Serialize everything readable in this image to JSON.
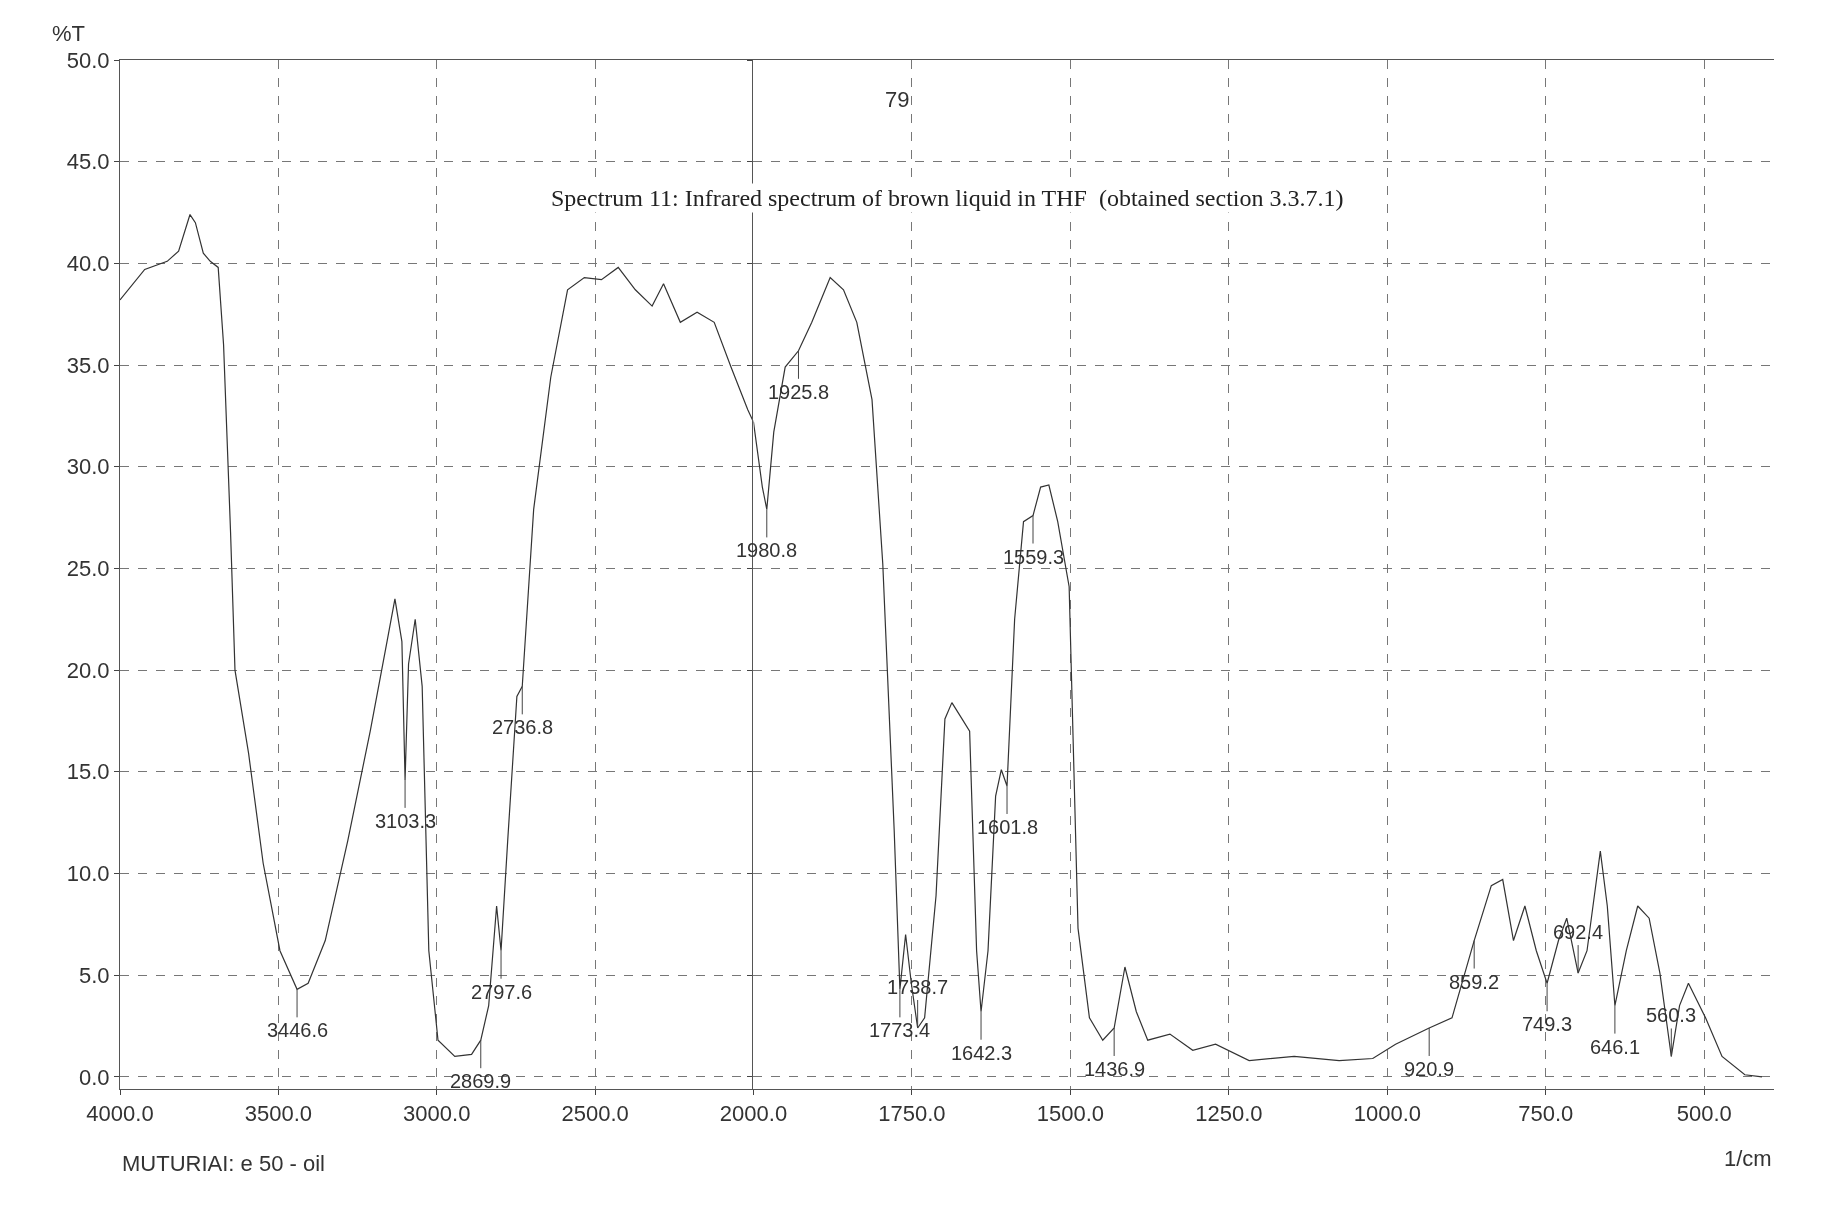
{
  "chart_data": [
    {
      "type": "line",
      "title": "Spectrum 11: Infrared spectrum of brown liquid in THF  (obtained section 3.3.7.1)",
      "ylabel": "%T",
      "grid": true,
      "line_style": "solid",
      "marker": "none",
      "annotations": [
        "79",
        "MUTURIAI: e 50 - oil",
        {
          "text": "3446.6",
          "x": 3441,
          "y": 4.3
        },
        {
          "text": "3103.3",
          "x": 3100,
          "y": 14.6
        },
        {
          "text": "2869.9",
          "x": 2861,
          "y": 1.8
        },
        {
          "text": "2797.6",
          "x": 2797,
          "y": 6.2
        },
        {
          "text": "2736.8",
          "x": 2730,
          "y": 19.2
        }
      ],
      "xlim": [
        4000,
        2000
      ],
      "xticks": [
        {
          "value": 4000,
          "label": "4000.0"
        },
        {
          "value": 3500,
          "label": "3500.0"
        },
        {
          "value": 3000,
          "label": "3000.0"
        },
        {
          "value": 2500,
          "label": "2500.0"
        }
      ],
      "ylim": [
        -0.6,
        50
      ],
      "yticks": [
        {
          "value": 0,
          "label": "0.0"
        },
        {
          "value": 5,
          "label": "5.0"
        },
        {
          "value": 10,
          "label": "10.0"
        },
        {
          "value": 15,
          "label": "15.0"
        },
        {
          "value": 20,
          "label": "20.0"
        },
        {
          "value": 25,
          "label": "25.0"
        },
        {
          "value": 30,
          "label": "30.0"
        },
        {
          "value": 35,
          "label": "35.0"
        },
        {
          "value": 40,
          "label": "40.0"
        },
        {
          "value": 45,
          "label": "45.0"
        },
        {
          "value": 50,
          "label": "50.0"
        }
      ],
      "series": [
        {
          "color": "#333333",
          "x": [
            4000,
            3922,
            3851,
            3815,
            3779,
            3762,
            3737,
            3715,
            3690,
            3673,
            3651,
            3637,
            3594,
            3548,
            3495,
            3441,
            3406,
            3352,
            3281,
            3210,
            3157,
            3132,
            3110,
            3100,
            3089,
            3068,
            3046,
            3025,
            2996,
            2943,
            2890,
            2861,
            2836,
            2811,
            2797,
            2776,
            2747,
            2730,
            2694,
            2640,
            2587,
            2534,
            2480,
            2427,
            2373,
            2320,
            2284,
            2231,
            2178,
            2124,
            2071,
            2018,
            2000
          ],
          "values": [
            38.2,
            39.7,
            40.1,
            40.6,
            42.4,
            42,
            40.5,
            40.1,
            39.8,
            36,
            26.8,
            20,
            15.9,
            10.5,
            6.2,
            4.3,
            4.6,
            6.7,
            11.6,
            17,
            21.4,
            23.5,
            21.4,
            14.6,
            20.3,
            22.5,
            19.2,
            6.2,
            1.8,
            1,
            1.1,
            1.8,
            3.5,
            8.4,
            6.2,
            11.6,
            18.7,
            19.2,
            27.9,
            34.4,
            38.7,
            39.3,
            39.2,
            39.8,
            38.7,
            37.9,
            39,
            37.1,
            37.6,
            37.1,
            34.9,
            32.8,
            32.2
          ]
        }
      ]
    },
    {
      "type": "line",
      "xlabel": "1/cm",
      "grid": true,
      "line_style": "solid",
      "marker": "none",
      "tick_labels": "x",
      "annotations": [
        {
          "text": "1980.8",
          "x": 1979,
          "y": 27.9
        },
        {
          "text": "1925.8",
          "x": 1929,
          "y": 35.7
        },
        {
          "text": "1773.4",
          "x": 1769,
          "y": 4.3
        },
        {
          "text": "1738.7",
          "x": 1741,
          "y": 2.4
        },
        {
          "text": "1642.3",
          "x": 1641,
          "y": 3.2
        },
        {
          "text": "1601.8",
          "x": 1600,
          "y": 14.3
        },
        {
          "text": "1559.3",
          "x": 1559,
          "y": 27.6
        },
        {
          "text": "1436.9",
          "x": 1431,
          "y": 2.4
        },
        {
          "text": "920.9",
          "x": 934,
          "y": 2.4
        },
        {
          "text": "859.2",
          "x": 863,
          "y": 6.7
        },
        {
          "text": "749.3",
          "x": 748,
          "y": 4.6
        },
        {
          "text": "692.4",
          "x": 699,
          "y": 5.1
        },
        {
          "text": "646.1",
          "x": 641,
          "y": 3.5
        },
        {
          "text": "560.3",
          "x": 552,
          "y": 1
        }
      ],
      "xlim": [
        2000,
        390
      ],
      "xticks": [
        {
          "value": 2000,
          "label": "2000.0"
        },
        {
          "value": 1750,
          "label": "1750.0"
        },
        {
          "value": 1500,
          "label": "1500.0"
        },
        {
          "value": 1250,
          "label": "1250.0"
        },
        {
          "value": 1000,
          "label": "1000.0"
        },
        {
          "value": 750,
          "label": "750.0"
        },
        {
          "value": 500,
          "label": "500.0"
        }
      ],
      "ylim": [
        -0.6,
        50
      ],
      "series": [
        {
          "color": "#333333",
          "x": [
            2000,
            1986,
            1979,
            1968,
            1950,
            1929,
            1908,
            1879,
            1858,
            1837,
            1813,
            1796,
            1778,
            1769,
            1760,
            1751,
            1741,
            1730,
            1712,
            1698,
            1687,
            1671,
            1659,
            1648,
            1641,
            1630,
            1618,
            1609,
            1600,
            1588,
            1574,
            1559,
            1547,
            1534,
            1520,
            1502,
            1488,
            1470,
            1449,
            1431,
            1414,
            1396,
            1378,
            1343,
            1307,
            1271,
            1218,
            1147,
            1076,
            1023,
            987,
            934,
            898,
            863,
            836,
            818,
            801,
            783,
            765,
            748,
            730,
            717,
            699,
            685,
            664,
            653,
            641,
            623,
            605,
            587,
            570,
            552,
            539,
            525,
            498,
            472,
            436,
            409
          ],
          "values": [
            32.2,
            29,
            27.9,
            31.7,
            34.9,
            35.7,
            37.1,
            39.3,
            38.7,
            37.1,
            33.3,
            25.2,
            12.1,
            4.3,
            7,
            4.6,
            2.4,
            2.9,
            8.9,
            17.6,
            18.4,
            17.6,
            17,
            6.2,
            3.2,
            6.2,
            13.8,
            15.1,
            14.3,
            22.5,
            27.3,
            27.6,
            29,
            29.1,
            27.3,
            24.1,
            7.3,
            2.9,
            1.8,
            2.4,
            5.4,
            3.2,
            1.8,
            2.1,
            1.3,
            1.6,
            0.8,
            1,
            0.8,
            0.9,
            1.6,
            2.4,
            2.9,
            6.7,
            9.4,
            9.7,
            6.7,
            8.4,
            6.2,
            4.6,
            6.7,
            7.8,
            5.1,
            6.2,
            11.1,
            8.4,
            3.5,
            6.2,
            8.4,
            7.8,
            5.1,
            1,
            3.5,
            4.6,
            2.9,
            1,
            0.1,
            0
          ]
        }
      ]
    }
  ]
}
